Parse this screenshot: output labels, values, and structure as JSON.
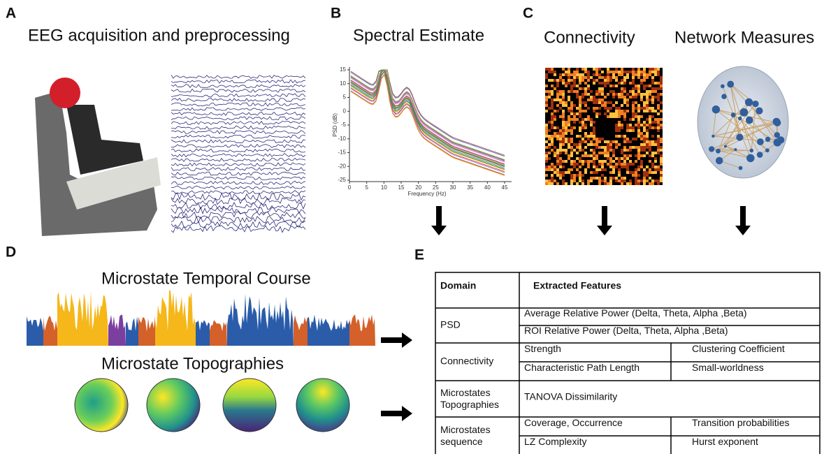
{
  "panel_a": {
    "label": "A",
    "title": "EEG acquisition and preprocessing"
  },
  "panel_b": {
    "label": "B",
    "title": "Spectral Estimate",
    "ylabel": "PSD (dB)",
    "xlabel": "Frequency (Hz)",
    "yticks": [
      15,
      10,
      5,
      0,
      -5,
      -10,
      -15,
      -20,
      -25
    ],
    "xticks": [
      0,
      5,
      10,
      15,
      20,
      25,
      30,
      35,
      40,
      45
    ]
  },
  "panel_c": {
    "label": "C",
    "title_left": "Connectivity",
    "title_right": "Network Measures"
  },
  "panel_d": {
    "label": "D",
    "title_top": "Microstate Temporal Course",
    "title_bottom": "Microstate Topographies"
  },
  "panel_e": {
    "label": "E",
    "table": {
      "header": [
        "Domain",
        "Extracted Features"
      ],
      "rows": [
        {
          "domain": "PSD",
          "features": [
            [
              "Average Relative Power (Delta, Theta, Alpha ,Beta)"
            ],
            [
              "ROI Relative Power (Delta, Theta, Alpha ,Beta)"
            ]
          ]
        },
        {
          "domain": "Connectivity",
          "features": [
            [
              "Strength",
              "Clustering Coefficient"
            ],
            [
              "Characteristic Path Length",
              "Small-worldness"
            ]
          ]
        },
        {
          "domain": "Microstates Topographies",
          "features": [
            [
              "TANOVA Dissimilarity"
            ]
          ]
        },
        {
          "domain": "Microstates sequence",
          "features": [
            [
              "Coverage, Occurrence",
              "Transition probabilities"
            ],
            [
              "LZ Complexity",
              "Hurst exponent"
            ]
          ]
        }
      ]
    }
  }
}
